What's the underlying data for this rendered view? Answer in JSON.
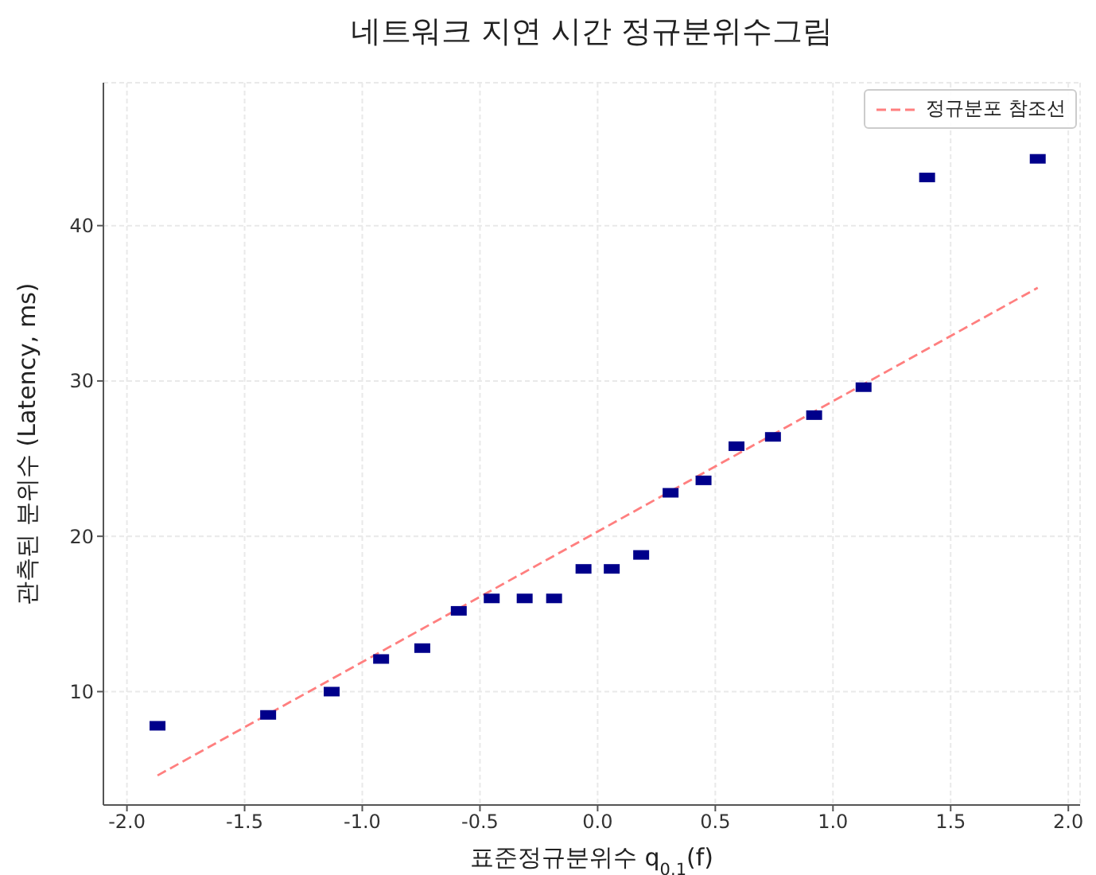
{
  "chart_data": {
    "type": "scatter",
    "title": "네트워크 지연 시간 정규분위수그림",
    "xlabel": "표준정규분위수 q$_{0.1}$(f)",
    "ylabel": "관측된 분위수 (Latency, ms)",
    "series": [
      {
        "type": "scatter",
        "color": "#00008b",
        "marker": "square",
        "x": [
          -1.87,
          -1.4,
          -1.13,
          -0.92,
          -0.745,
          -0.59,
          -0.45,
          -0.31,
          -0.185,
          -0.06,
          0.06,
          0.185,
          0.31,
          0.45,
          0.59,
          0.745,
          0.92,
          1.13,
          1.4,
          1.87
        ],
        "values": [
          7.8,
          8.5,
          10.0,
          12.1,
          12.8,
          15.2,
          16.0,
          16.0,
          16.0,
          17.9,
          17.9,
          18.8,
          22.8,
          23.6,
          25.8,
          26.4,
          27.8,
          29.6,
          43.1,
          44.3
        ]
      },
      {
        "type": "line",
        "name": "정규분포 참조선",
        "color": "#ff7f7f",
        "line_style": "dashed",
        "x": [
          -1.87,
          1.87
        ],
        "values": [
          4.6,
          36.0
        ]
      }
    ],
    "xlim": [
      -2.1,
      2.05
    ],
    "xticks": [
      {
        "value": -2,
        "label": "-2.0"
      },
      {
        "value": -1.5,
        "label": "-1.5"
      },
      {
        "value": -1,
        "label": "-1.0"
      },
      {
        "value": -0.5,
        "label": "-0.5"
      },
      {
        "value": 0,
        "label": "0.0"
      },
      {
        "value": 0.5,
        "label": "0.5"
      },
      {
        "value": 1,
        "label": "1.0"
      },
      {
        "value": 1.5,
        "label": "1.5"
      },
      {
        "value": 2,
        "label": "2.0"
      }
    ],
    "ylim": [
      2.7,
      49.2
    ],
    "yticks": [
      10,
      20,
      30,
      40
    ],
    "grid": true,
    "legend": "top right"
  }
}
